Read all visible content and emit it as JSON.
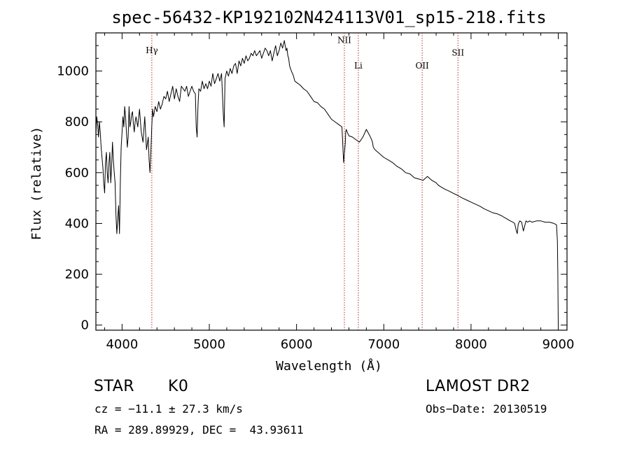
{
  "chart_data": {
    "type": "line",
    "title": "spec-56432-KP192102N424113V01_sp15-218.fits",
    "xlabel": "Wavelength (Å)",
    "ylabel": "Flux (relative)",
    "xlim": [
      3700,
      9100
    ],
    "ylim": [
      -20,
      1150
    ],
    "xticks": [
      4000,
      5000,
      6000,
      7000,
      8000,
      9000
    ],
    "yticks": [
      0,
      200,
      400,
      600,
      800,
      1000
    ],
    "grid": false,
    "series": [
      {
        "x": [
          3700,
          3710,
          3720,
          3730,
          3740,
          3750,
          3760,
          3770,
          3780,
          3790,
          3800,
          3810,
          3820,
          3830,
          3840,
          3850,
          3860,
          3870,
          3880,
          3890,
          3900,
          3910,
          3920,
          3930,
          3940,
          3950,
          3960,
          3970,
          3980,
          3990,
          4000,
          4010,
          4020,
          4030,
          4040,
          4050,
          4060,
          4070,
          4080,
          4090,
          4100,
          4110,
          4120,
          4130,
          4140,
          4150,
          4160,
          4180,
          4200,
          4220,
          4240,
          4260,
          4280,
          4300,
          4310,
          4320,
          4330,
          4340,
          4350,
          4360,
          4380,
          4400,
          4420,
          4440,
          4460,
          4480,
          4500,
          4520,
          4540,
          4560,
          4580,
          4600,
          4620,
          4640,
          4660,
          4680,
          4700,
          4720,
          4740,
          4760,
          4780,
          4800,
          4820,
          4840,
          4850,
          4860,
          4870,
          4880,
          4900,
          4920,
          4940,
          4960,
          4980,
          5000,
          5020,
          5040,
          5060,
          5080,
          5100,
          5120,
          5140,
          5160,
          5170,
          5180,
          5200,
          5220,
          5240,
          5260,
          5280,
          5300,
          5320,
          5340,
          5360,
          5380,
          5400,
          5420,
          5440,
          5460,
          5480,
          5500,
          5520,
          5540,
          5560,
          5580,
          5600,
          5620,
          5640,
          5660,
          5680,
          5700,
          5720,
          5740,
          5760,
          5780,
          5800,
          5820,
          5840,
          5860,
          5870,
          5880,
          5890,
          5900,
          5910,
          5920,
          5940,
          5960,
          5980,
          6000,
          6040,
          6080,
          6120,
          6160,
          6200,
          6240,
          6280,
          6320,
          6360,
          6400,
          6440,
          6480,
          6520,
          6540,
          6560,
          6563,
          6570,
          6580,
          6600,
          6640,
          6680,
          6720,
          6760,
          6800,
          6840,
          6860,
          6870,
          6880,
          6900,
          6950,
          7000,
          7050,
          7100,
          7150,
          7200,
          7250,
          7300,
          7350,
          7400,
          7450,
          7500,
          7550,
          7600,
          7620,
          7650,
          7700,
          7750,
          7800,
          7850,
          7900,
          7950,
          8000,
          8050,
          8100,
          8150,
          8200,
          8250,
          8300,
          8350,
          8400,
          8450,
          8480,
          8500,
          8520,
          8530,
          8540,
          8550,
          8560,
          8580,
          8600,
          8630,
          8650,
          8670,
          8700,
          8750,
          8800,
          8850,
          8900,
          8950,
          8980,
          8990,
          8995,
          9000
        ],
        "y": [
          750,
          820,
          790,
          740,
          800,
          760,
          700,
          660,
          620,
          560,
          520,
          640,
          680,
          600,
          560,
          640,
          680,
          560,
          620,
          720,
          650,
          600,
          560,
          430,
          360,
          420,
          470,
          360,
          560,
          700,
          760,
          820,
          780,
          860,
          820,
          760,
          700,
          740,
          860,
          780,
          800,
          830,
          840,
          790,
          760,
          800,
          820,
          780,
          850,
          760,
          720,
          820,
          690,
          740,
          650,
          600,
          680,
          780,
          850,
          820,
          860,
          840,
          880,
          850,
          870,
          900,
          890,
          920,
          880,
          910,
          940,
          890,
          930,
          900,
          880,
          940,
          930,
          920,
          940,
          900,
          920,
          940,
          920,
          910,
          780,
          740,
          860,
          930,
          920,
          960,
          930,
          950,
          930,
          960,
          940,
          990,
          950,
          970,
          990,
          960,
          990,
          830,
          780,
          970,
          1000,
          980,
          1010,
          990,
          1020,
          1030,
          990,
          1040,
          1020,
          1050,
          1030,
          1060,
          1040,
          1050,
          1070,
          1060,
          1080,
          1060,
          1070,
          1080,
          1050,
          1070,
          1090,
          1080,
          1060,
          1080,
          1040,
          1070,
          1100,
          1060,
          1080,
          1110,
          1090,
          1120,
          1100,
          1080,
          1090,
          1060,
          1050,
          1020,
          1000,
          985,
          960,
          955,
          945,
          930,
          920,
          900,
          880,
          875,
          860,
          850,
          830,
          810,
          800,
          790,
          780,
          640,
          720,
          760,
          770,
          760,
          745,
          740,
          730,
          720,
          740,
          770,
          745,
          730,
          720,
          700,
          690,
          675,
          660,
          650,
          640,
          625,
          615,
          600,
          595,
          580,
          575,
          570,
          585,
          570,
          560,
          552,
          545,
          535,
          527,
          518,
          510,
          500,
          492,
          484,
          476,
          468,
          458,
          450,
          442,
          438,
          430,
          420,
          410,
          405,
          400,
          370,
          360,
          395,
          405,
          410,
          405,
          370,
          410,
          405,
          410,
          405,
          410,
          410,
          405,
          405,
          400,
          395,
          330,
          200,
          0
        ]
      }
    ],
    "annotations": [
      {
        "label": "Hγ",
        "x": 4341,
        "y": 1070
      },
      {
        "label": "NII",
        "x": 6548,
        "y": 1110
      },
      {
        "label": "Li",
        "x": 6708,
        "y": 1010
      },
      {
        "label": "OII",
        "x": 7440,
        "y": 1010
      },
      {
        "label": "SII",
        "x": 7850,
        "y": 1060
      }
    ]
  },
  "footer": {
    "object_class": "STAR",
    "subclass": "K0",
    "survey": "LAMOST DR2",
    "cz": "cz = −11.1 ± 27.3 km/s",
    "obs_date": "Obs−Date: 20130519",
    "coords": "RA = 289.89929, DEC =  43.93611"
  }
}
